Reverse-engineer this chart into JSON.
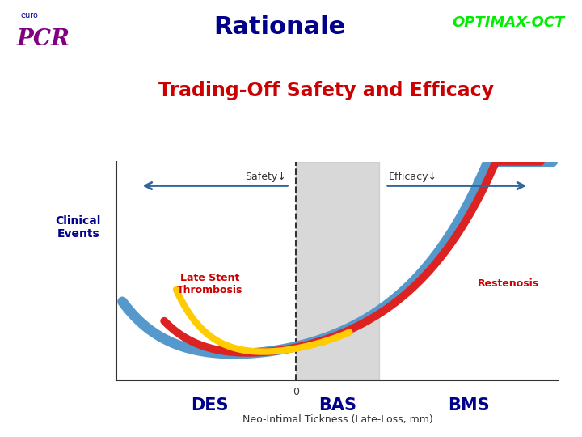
{
  "title": "Rationale",
  "optimax_text": "OPTIMAX-OCT",
  "subtitle": "Trading-Off Safety and Efficacy",
  "ylabel": "Clinical\nEvents",
  "xlabel": "Neo-Intimal Tickness (Late-Loss, mm)",
  "x_zero_label": "0",
  "des_label": "DES",
  "bas_label": "BAS",
  "bms_label": "BMS",
  "safety_label": "Safety↓",
  "efficacy_label": "Efficacy↓",
  "lst_label": "Late Stent\nThrombosis",
  "restenosis_label": "Restenosis",
  "title_color": "#00008B",
  "optimax_color": "#00ee00",
  "subtitle_color": "#cc0000",
  "ylabel_color": "#00008B",
  "des_color": "#00008B",
  "bas_color": "#00008B",
  "bms_color": "#00008B",
  "lst_color": "#cc0000",
  "restenosis_color": "#cc0000",
  "safety_arrow_color": "#336699",
  "efficacy_arrow_color": "#336699",
  "shaded_region_color": "#b8b8b8",
  "shaded_alpha": 0.55,
  "curve_blue_color": "#5599cc",
  "curve_red_color": "#dd2222",
  "curve_yellow_color": "#ffcc00",
  "background_color": "#ffffff",
  "euro_color": "#000080",
  "pcr_color": "#800080",
  "xmin": -1.5,
  "xmax": 2.2,
  "ymin": 0.0,
  "ymax": 5.0,
  "bas_xmin": 0.0,
  "bas_xmax": 0.7,
  "dashed_x": 0.0
}
